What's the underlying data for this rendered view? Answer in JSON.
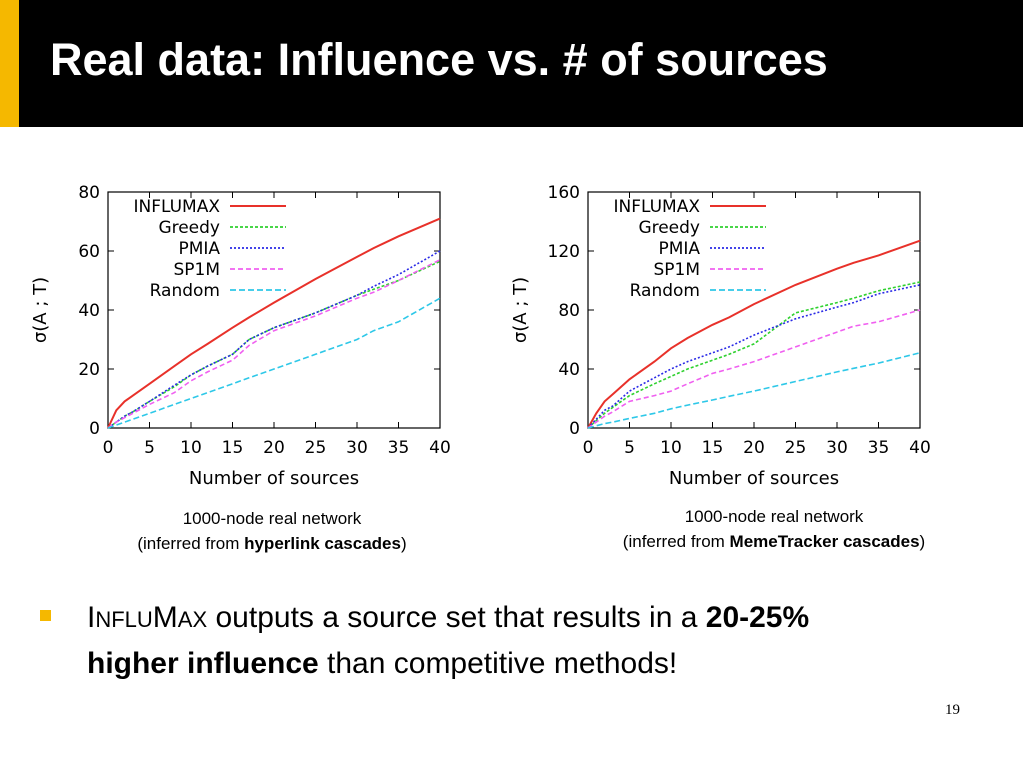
{
  "slide": {
    "title": "Real data: Influence vs. # of sources",
    "page_number": "19",
    "accent_color": "#f5b800",
    "header_color": "#000000"
  },
  "captions": [
    {
      "line1": "1000-node real network",
      "prefix": "(inferred from ",
      "bold": "hyperlink cascades",
      "suffix": ")"
    },
    {
      "line1": "1000-node real network",
      "prefix": "(inferred from ",
      "bold": "MemeTracker cascades",
      "suffix": ")"
    }
  ],
  "bullet": {
    "brand_first": "I",
    "brand_small": "NFLU",
    "brand_mid": "M",
    "brand_small2": "AX",
    "text_a": " outputs a source set that results in a ",
    "bold_a": "20-25%",
    "bold_b": "higher influence",
    "text_b": " than competitive methods!"
  },
  "chart_data": [
    {
      "type": "line",
      "xlabel": "Number of sources",
      "ylabel": "σ(A ; T)",
      "xlim": [
        0,
        40
      ],
      "ylim": [
        0,
        80
      ],
      "xticks": [
        0,
        5,
        10,
        15,
        20,
        25,
        30,
        35,
        40
      ],
      "yticks": [
        0,
        20,
        40,
        60,
        80
      ],
      "legend_position": "top-left",
      "x": [
        0,
        1,
        2,
        3,
        5,
        8,
        10,
        12,
        15,
        17,
        20,
        25,
        30,
        32,
        35,
        40
      ],
      "series": [
        {
          "name": "INFLUMAX",
          "color": "#e8312a",
          "dash": "",
          "values": [
            0,
            6,
            9,
            11,
            15,
            21,
            25,
            28.5,
            34,
            37.5,
            42.5,
            50.5,
            58,
            61,
            65,
            71
          ]
        },
        {
          "name": "Greedy",
          "color": "#2fd12f",
          "dash": "3,2",
          "values": [
            0,
            2,
            4,
            5.5,
            9,
            14,
            18,
            21,
            25,
            30,
            34,
            39,
            45,
            47,
            50,
            56.5
          ]
        },
        {
          "name": "PMIA",
          "color": "#2a2ae6",
          "dash": "2,2",
          "values": [
            0,
            2,
            4,
            5.5,
            9,
            14.5,
            18,
            21,
            25,
            30,
            34,
            39,
            45,
            48,
            52,
            60
          ]
        },
        {
          "name": "SP1M",
          "color": "#f060f0",
          "dash": "5,3",
          "values": [
            0,
            2,
            3.5,
            5,
            8,
            12,
            16,
            19,
            23,
            28,
            33,
            38,
            44,
            46,
            50,
            57
          ]
        },
        {
          "name": "Random",
          "color": "#2ec8e8",
          "dash": "6,3",
          "values": [
            0,
            1,
            2,
            3,
            5,
            8,
            10,
            12,
            15,
            17,
            20,
            25,
            30,
            33,
            36,
            44
          ]
        }
      ]
    },
    {
      "type": "line",
      "xlabel": "Number of sources",
      "ylabel": "σ(A ; T)",
      "xlim": [
        0,
        40
      ],
      "ylim": [
        0,
        160
      ],
      "xticks": [
        0,
        5,
        10,
        15,
        20,
        25,
        30,
        35,
        40
      ],
      "yticks": [
        0,
        40,
        80,
        120,
        160
      ],
      "legend_position": "top-left",
      "x": [
        0,
        1,
        2,
        3,
        5,
        8,
        10,
        12,
        15,
        17,
        20,
        25,
        30,
        32,
        35,
        40
      ],
      "series": [
        {
          "name": "INFLUMAX",
          "color": "#e8312a",
          "dash": "",
          "values": [
            0,
            10,
            18,
            23,
            33,
            45,
            54,
            61,
            70,
            75,
            84,
            97,
            108,
            112,
            117,
            127
          ]
        },
        {
          "name": "Greedy",
          "color": "#2fd12f",
          "dash": "3,2",
          "values": [
            0,
            5,
            10,
            14,
            22,
            30,
            35,
            40,
            46,
            50,
            57,
            78,
            85,
            88,
            93,
            99
          ]
        },
        {
          "name": "PMIA",
          "color": "#2a2ae6",
          "dash": "2,2",
          "values": [
            0,
            6,
            12,
            15,
            25,
            34,
            40,
            45,
            51,
            55,
            63,
            74,
            82,
            85,
            91,
            97
          ]
        },
        {
          "name": "SP1M",
          "color": "#f060f0",
          "dash": "5,3",
          "values": [
            0,
            4,
            8,
            11,
            18,
            22,
            25,
            30,
            37,
            40,
            45,
            55,
            65,
            69,
            72,
            80
          ]
        },
        {
          "name": "Random",
          "color": "#2ec8e8",
          "dash": "6,3",
          "values": [
            0,
            1.5,
            3,
            4,
            6.5,
            10,
            13,
            15.5,
            19,
            21.5,
            25,
            31.5,
            38,
            40.5,
            44,
            51
          ]
        }
      ]
    }
  ]
}
